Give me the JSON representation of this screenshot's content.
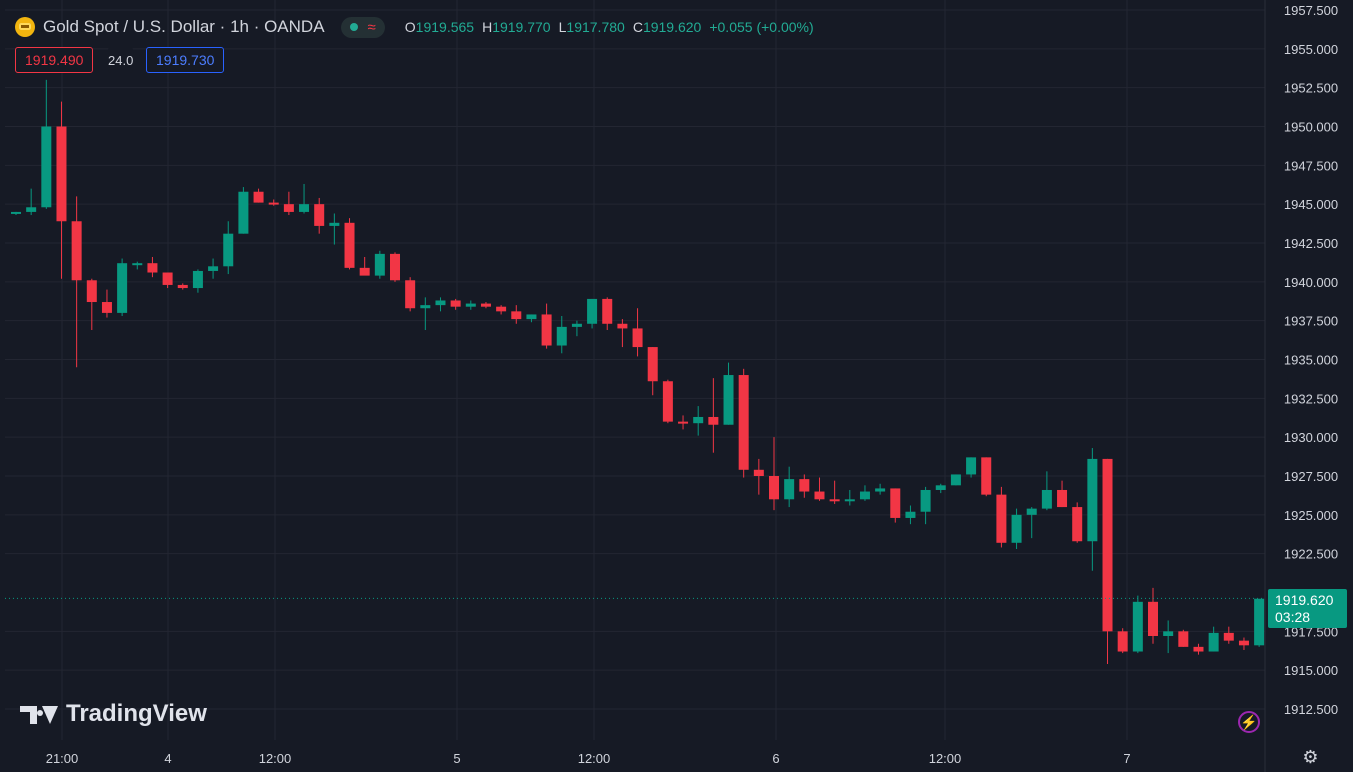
{
  "header": {
    "title": "Gold Spot / U.S. Dollar · 1h · OANDA",
    "status_wave": "≈",
    "ohlc": {
      "o_label": "O",
      "o_value": "1919.565",
      "h_label": "H",
      "h_value": "1919.770",
      "l_label": "L",
      "l_value": "1917.780",
      "c_label": "C",
      "c_value": "1919.620",
      "change": "+0.055 (+0.00%)"
    },
    "sell_price": "1919.490",
    "spread": "24.0",
    "buy_price": "1919.730"
  },
  "last_price": {
    "value": "1919.620",
    "countdown": "03:28"
  },
  "branding": {
    "logo_text": "TradingView"
  },
  "icons": {
    "bolt": "lightning-icon",
    "settings": "gear-icon"
  },
  "colors": {
    "up": "#089981",
    "down": "#f23645",
    "background": "#161a25",
    "grid": "#232632",
    "text": "#d1d4dc"
  },
  "chart_data": {
    "type": "candlestick",
    "y_ticks": [
      "1957.500",
      "1955.000",
      "1952.500",
      "1950.000",
      "1947.500",
      "1945.000",
      "1942.500",
      "1940.000",
      "1937.500",
      "1935.000",
      "1932.500",
      "1930.000",
      "1927.500",
      "1925.000",
      "1922.500",
      "1917.500",
      "1915.000",
      "1912.500"
    ],
    "x_ticks": [
      "21:00",
      "4",
      "12:00",
      "5",
      "12:00",
      "6",
      "12:00",
      "7"
    ],
    "ylim": [
      1911.5,
      1958.3
    ],
    "candles": [
      [
        1944.5,
        1944.5,
        1944.3,
        1944.5
      ],
      [
        1944.5,
        1946.0,
        1944.3,
        1944.8
      ],
      [
        1944.8,
        1953.0,
        1944.7,
        1950.0
      ],
      [
        1950.0,
        1951.6,
        1940.2,
        1943.9
      ],
      [
        1943.9,
        1945.5,
        1934.5,
        1940.1
      ],
      [
        1940.1,
        1940.2,
        1936.9,
        1938.7
      ],
      [
        1938.7,
        1939.5,
        1937.7,
        1938.0
      ],
      [
        1938.0,
        1941.5,
        1937.8,
        1941.2
      ],
      [
        1941.2,
        1941.3,
        1940.8,
        1941.2
      ],
      [
        1941.2,
        1941.6,
        1940.3,
        1940.6
      ],
      [
        1940.6,
        1940.6,
        1939.6,
        1939.8
      ],
      [
        1939.8,
        1939.9,
        1939.5,
        1939.6
      ],
      [
        1939.6,
        1940.8,
        1939.3,
        1940.7
      ],
      [
        1940.7,
        1941.5,
        1940.2,
        1941.0
      ],
      [
        1941.0,
        1943.9,
        1940.5,
        1943.1
      ],
      [
        1943.1,
        1946.1,
        1943.1,
        1945.8
      ],
      [
        1945.8,
        1946.0,
        1945.1,
        1945.1
      ],
      [
        1945.1,
        1945.3,
        1944.9,
        1945.0
      ],
      [
        1945.0,
        1945.8,
        1944.3,
        1944.5
      ],
      [
        1944.5,
        1946.3,
        1944.4,
        1945.0
      ],
      [
        1945.0,
        1945.4,
        1943.1,
        1943.6
      ],
      [
        1943.6,
        1944.4,
        1942.4,
        1943.8
      ],
      [
        1943.8,
        1944.1,
        1940.8,
        1940.9
      ],
      [
        1940.9,
        1941.6,
        1940.5,
        1940.4
      ],
      [
        1940.4,
        1942.0,
        1940.2,
        1941.8
      ],
      [
        1941.8,
        1941.9,
        1940.0,
        1940.1
      ],
      [
        1940.1,
        1940.3,
        1938.1,
        1938.3
      ],
      [
        1938.3,
        1939.0,
        1936.9,
        1938.5
      ],
      [
        1938.5,
        1939.0,
        1938.1,
        1938.8
      ],
      [
        1938.8,
        1938.9,
        1938.2,
        1938.4
      ],
      [
        1938.4,
        1938.8,
        1938.2,
        1938.6
      ],
      [
        1938.6,
        1938.7,
        1938.3,
        1938.4
      ],
      [
        1938.4,
        1938.5,
        1937.9,
        1938.1
      ],
      [
        1938.1,
        1938.5,
        1937.3,
        1937.6
      ],
      [
        1937.6,
        1937.9,
        1937.4,
        1937.9
      ],
      [
        1937.9,
        1938.6,
        1935.7,
        1935.9
      ],
      [
        1935.9,
        1937.8,
        1935.4,
        1937.1
      ],
      [
        1937.1,
        1937.5,
        1936.5,
        1937.3
      ],
      [
        1937.3,
        1938.9,
        1937.0,
        1938.9
      ],
      [
        1938.9,
        1939.0,
        1936.9,
        1937.3
      ],
      [
        1937.3,
        1937.6,
        1935.8,
        1937.0
      ],
      [
        1937.0,
        1938.3,
        1935.2,
        1935.8
      ],
      [
        1935.8,
        1935.8,
        1932.7,
        1933.6
      ],
      [
        1933.6,
        1933.7,
        1930.9,
        1931.0
      ],
      [
        1931.0,
        1931.4,
        1930.5,
        1930.9
      ],
      [
        1930.9,
        1932.0,
        1930.1,
        1931.3
      ],
      [
        1931.3,
        1933.8,
        1929.0,
        1930.8
      ],
      [
        1930.8,
        1934.8,
        1930.8,
        1934.0
      ],
      [
        1934.0,
        1934.4,
        1927.4,
        1927.9
      ],
      [
        1927.9,
        1928.6,
        1926.3,
        1927.5
      ],
      [
        1927.5,
        1930.0,
        1925.3,
        1926.0
      ],
      [
        1926.0,
        1928.1,
        1925.5,
        1927.3
      ],
      [
        1927.3,
        1927.6,
        1926.1,
        1926.5
      ],
      [
        1926.5,
        1927.4,
        1925.9,
        1926.0
      ],
      [
        1926.0,
        1927.2,
        1925.7,
        1925.9
      ],
      [
        1925.9,
        1926.6,
        1925.6,
        1926.0
      ],
      [
        1926.0,
        1926.9,
        1925.9,
        1926.5
      ],
      [
        1926.5,
        1927.0,
        1926.3,
        1926.7
      ],
      [
        1926.7,
        1926.7,
        1924.5,
        1924.8
      ],
      [
        1924.8,
        1925.6,
        1924.4,
        1925.2
      ],
      [
        1925.2,
        1926.8,
        1924.4,
        1926.6
      ],
      [
        1926.6,
        1927.0,
        1926.4,
        1926.9
      ],
      [
        1926.9,
        1927.6,
        1926.9,
        1927.6
      ],
      [
        1927.6,
        1928.7,
        1927.4,
        1928.7
      ],
      [
        1928.7,
        1928.7,
        1926.2,
        1926.3
      ],
      [
        1926.3,
        1926.8,
        1922.9,
        1923.2
      ],
      [
        1923.2,
        1925.4,
        1922.8,
        1925.0
      ],
      [
        1925.0,
        1925.5,
        1923.5,
        1925.4
      ],
      [
        1925.4,
        1927.8,
        1925.3,
        1926.6
      ],
      [
        1926.6,
        1927.2,
        1925.5,
        1925.5
      ],
      [
        1925.5,
        1925.8,
        1923.2,
        1923.3
      ],
      [
        1923.3,
        1929.3,
        1921.4,
        1928.6
      ],
      [
        1928.6,
        1928.6,
        1915.4,
        1917.5
      ],
      [
        1917.5,
        1917.7,
        1916.1,
        1916.2
      ],
      [
        1916.2,
        1919.8,
        1916.1,
        1919.4
      ],
      [
        1919.4,
        1920.3,
        1916.7,
        1917.2
      ],
      [
        1917.2,
        1918.2,
        1916.1,
        1917.5
      ],
      [
        1917.5,
        1917.6,
        1916.5,
        1916.5
      ],
      [
        1916.5,
        1916.7,
        1916.0,
        1916.2
      ],
      [
        1916.2,
        1917.8,
        1916.2,
        1917.4
      ],
      [
        1917.4,
        1917.8,
        1916.7,
        1916.9
      ],
      [
        1916.9,
        1917.1,
        1916.3,
        1916.6
      ],
      [
        1916.6,
        1919.4,
        1916.5,
        1919.6
      ],
      [
        1919.6,
        1919.8,
        1917.8,
        1919.6
      ]
    ]
  }
}
